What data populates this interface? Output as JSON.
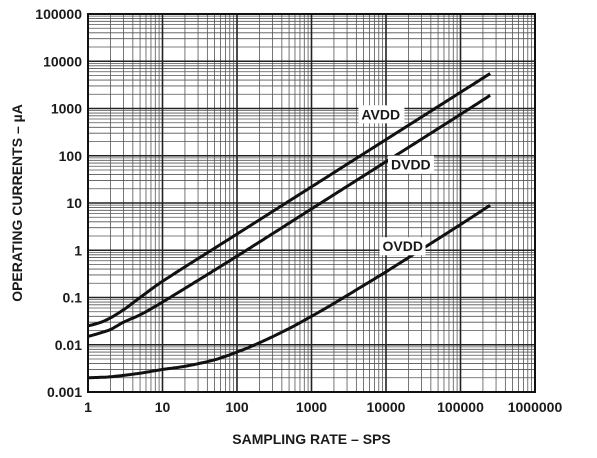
{
  "chart_data": {
    "type": "line",
    "xlabel": "SAMPLING RATE – SPS",
    "ylabel": "OPERATING CURRENTS – µA",
    "x_scale": "log",
    "y_scale": "log",
    "xlim": [
      1,
      1000000
    ],
    "ylim": [
      0.001,
      100000
    ],
    "grid": true,
    "x_tick_labels": [
      "1",
      "10",
      "100",
      "1000",
      "10000",
      "100000",
      "1000000"
    ],
    "y_tick_labels": [
      "0.001",
      "0.01",
      "0.1",
      "1",
      "10",
      "100",
      "1000",
      "10000",
      "100000"
    ],
    "series": [
      {
        "name": "AVDD",
        "x": [
          1,
          1.5,
          2,
          3,
          5,
          10,
          100,
          1000,
          10000,
          100000,
          250000
        ],
        "y": [
          0.025,
          0.03,
          0.037,
          0.055,
          0.1,
          0.22,
          2.2,
          22,
          220,
          2200,
          5500
        ]
      },
      {
        "name": "DVDD",
        "x": [
          1,
          1.5,
          2,
          3,
          5,
          10,
          100,
          1000,
          10000,
          100000,
          250000
        ],
        "y": [
          0.015,
          0.018,
          0.021,
          0.03,
          0.043,
          0.08,
          0.75,
          7.5,
          75,
          750,
          1900
        ]
      },
      {
        "name": "OVDD",
        "x": [
          1,
          2,
          5,
          10,
          20,
          50,
          100,
          200,
          500,
          1000,
          2000,
          5000,
          10000,
          100000,
          250000
        ],
        "y": [
          0.002,
          0.0021,
          0.0025,
          0.003,
          0.0035,
          0.0048,
          0.007,
          0.011,
          0.022,
          0.04,
          0.075,
          0.18,
          0.35,
          3.5,
          9
        ]
      }
    ]
  }
}
